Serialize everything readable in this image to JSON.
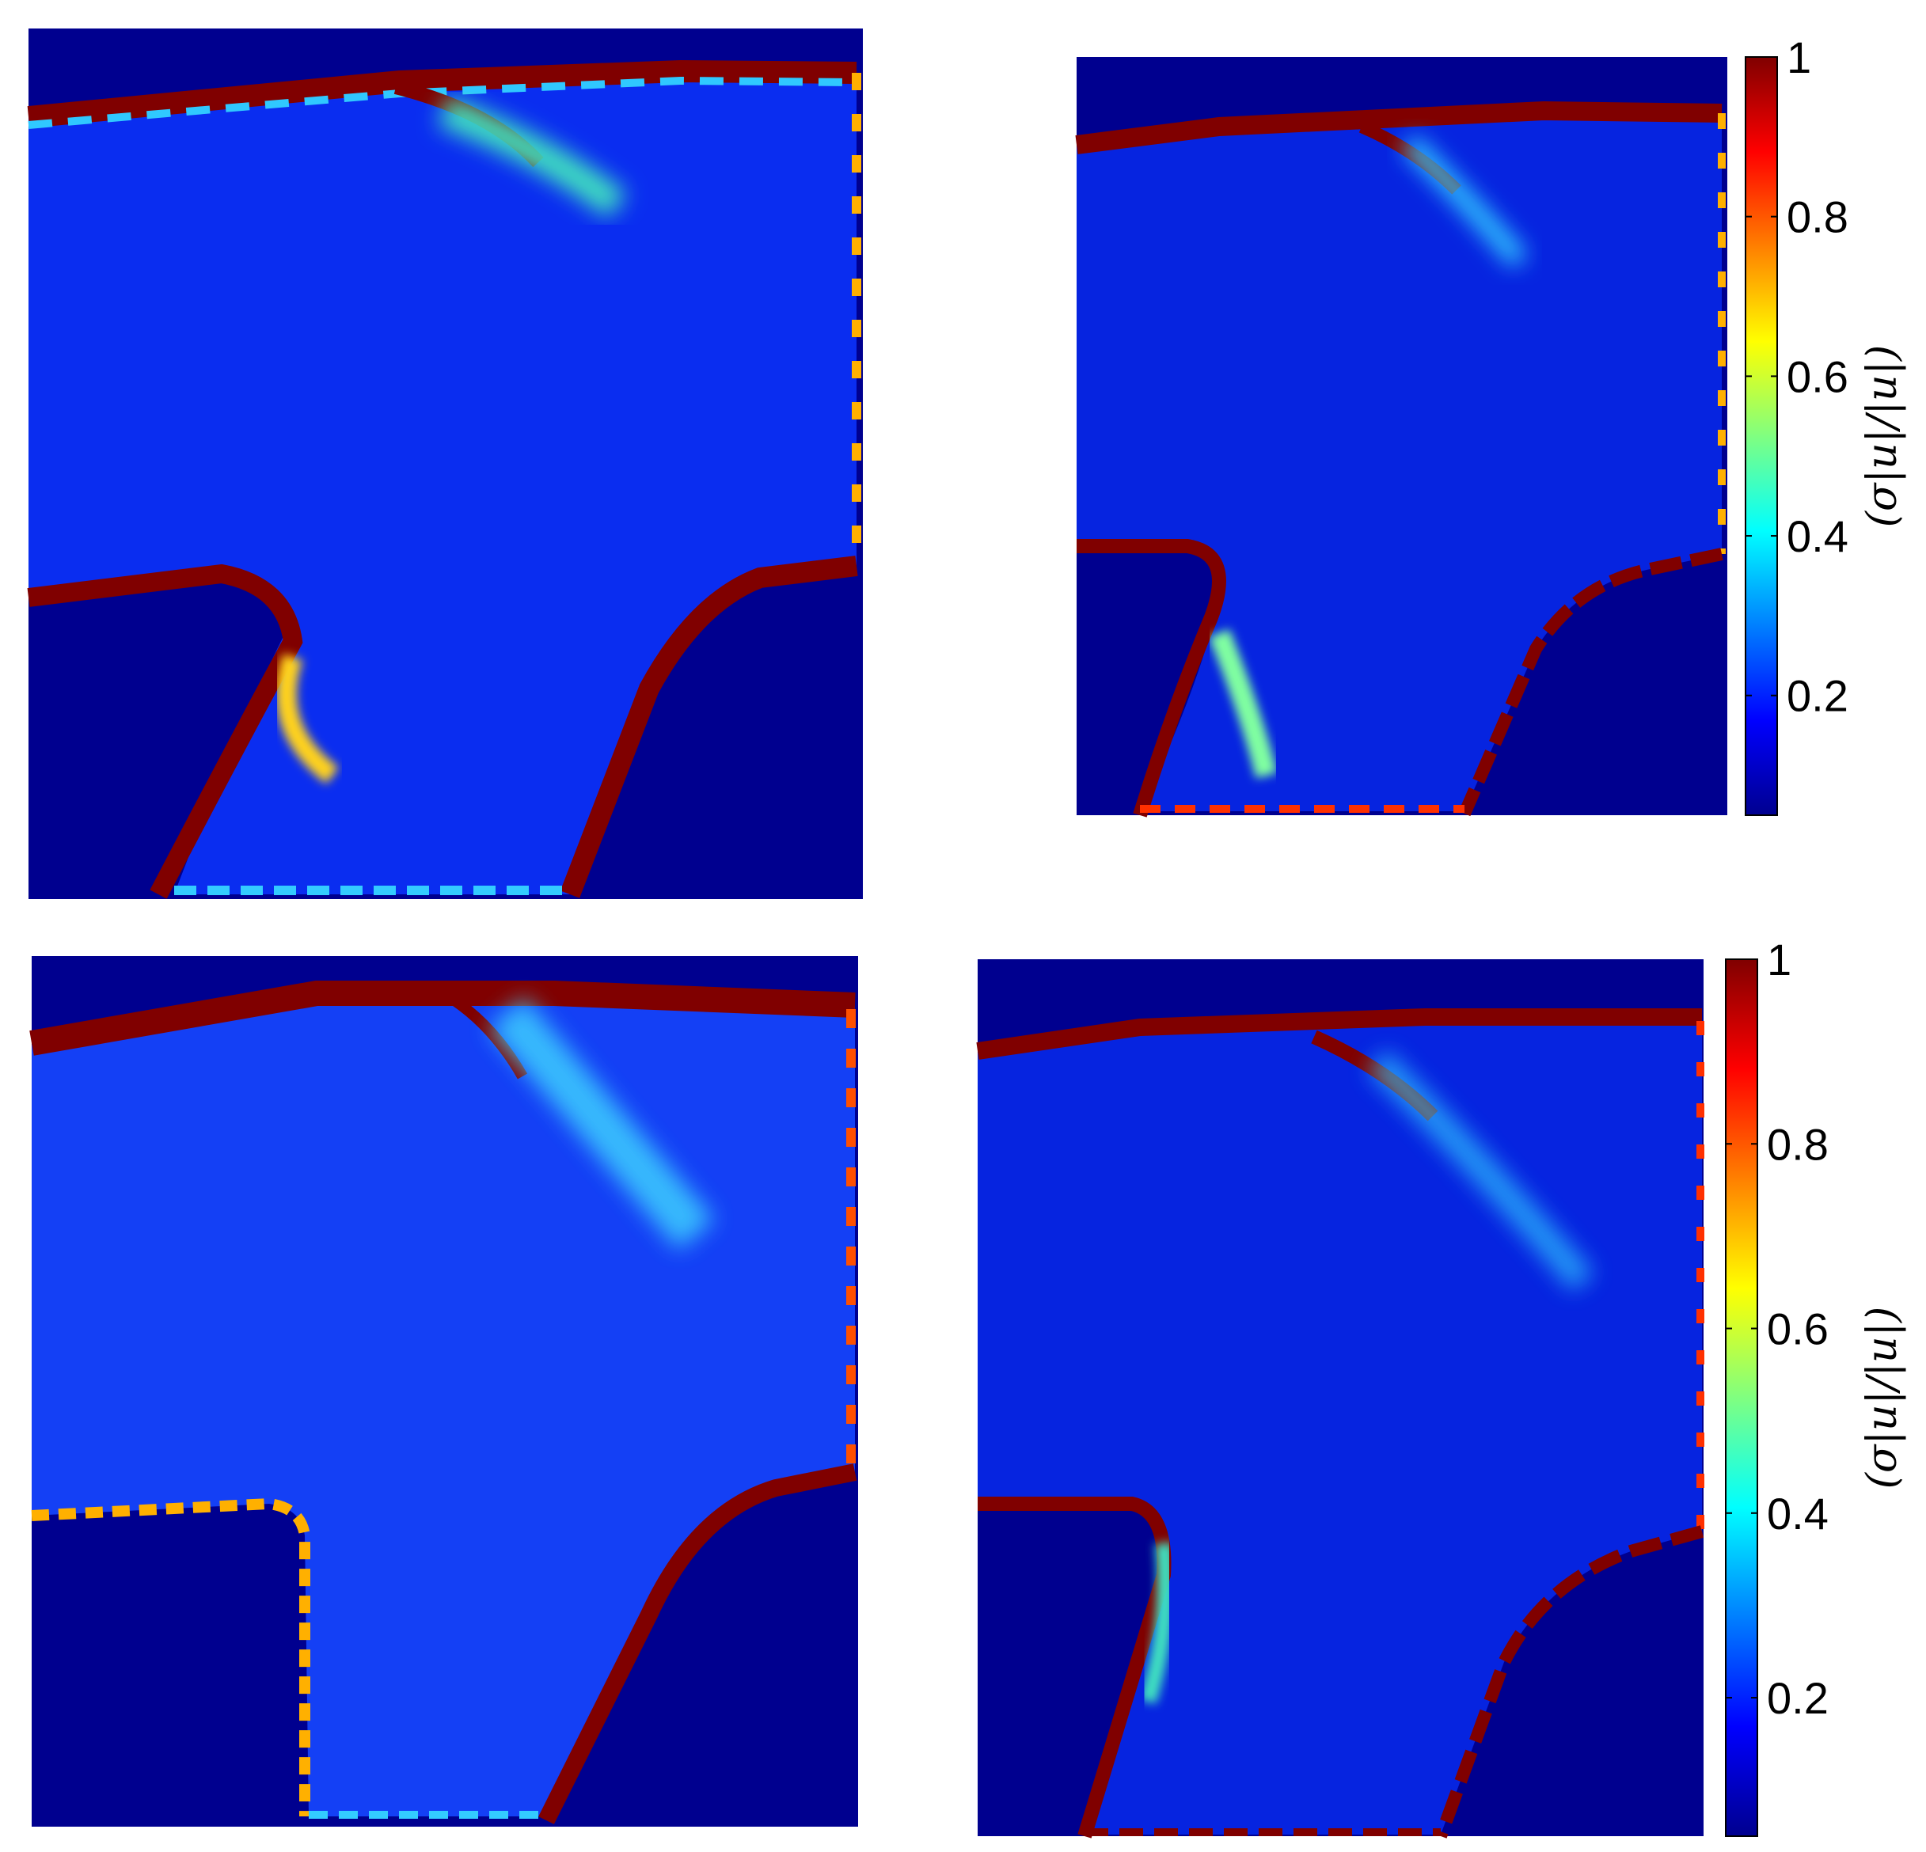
{
  "chart_data": [
    {
      "type": "heatmap",
      "panel": "top-left",
      "colormap": "jet",
      "clim": [
        0.05,
        1
      ],
      "background_value": 0.05,
      "interior_value_typical": 0.15,
      "boundary_value": 1
    },
    {
      "type": "heatmap",
      "panel": "top-right",
      "colormap": "jet",
      "clim": [
        0.05,
        1
      ],
      "background_value": 0.05,
      "interior_value_typical": 0.12,
      "boundary_value": 1,
      "colorbar": {
        "label": "(σ|u|/|u|)",
        "ticks": [
          0.2,
          0.4,
          0.6,
          0.8,
          1
        ],
        "tick_labels": [
          "0.2",
          "0.4",
          "0.6",
          "0.8",
          "1"
        ]
      }
    },
    {
      "type": "heatmap",
      "panel": "bottom-left",
      "colormap": "jet",
      "clim": [
        0.05,
        1
      ],
      "background_value": 0.05,
      "interior_value_typical": 0.2,
      "boundary_value": 1
    },
    {
      "type": "heatmap",
      "panel": "bottom-right",
      "colormap": "jet",
      "clim": [
        0.05,
        1
      ],
      "background_value": 0.05,
      "interior_value_typical": 0.12,
      "boundary_value": 1,
      "colorbar": {
        "label": "(σ|u|/|u|)",
        "ticks": [
          0.2,
          0.4,
          0.6,
          0.8,
          1
        ],
        "tick_labels": [
          "0.2",
          "0.4",
          "0.6",
          "0.8",
          "1"
        ]
      }
    }
  ],
  "colors": {
    "background": "#00008f",
    "interior": "#1030ee",
    "boundary_dark": "#800000",
    "boundary_light": "#33ccff",
    "highlight": "#ffd21a"
  }
}
